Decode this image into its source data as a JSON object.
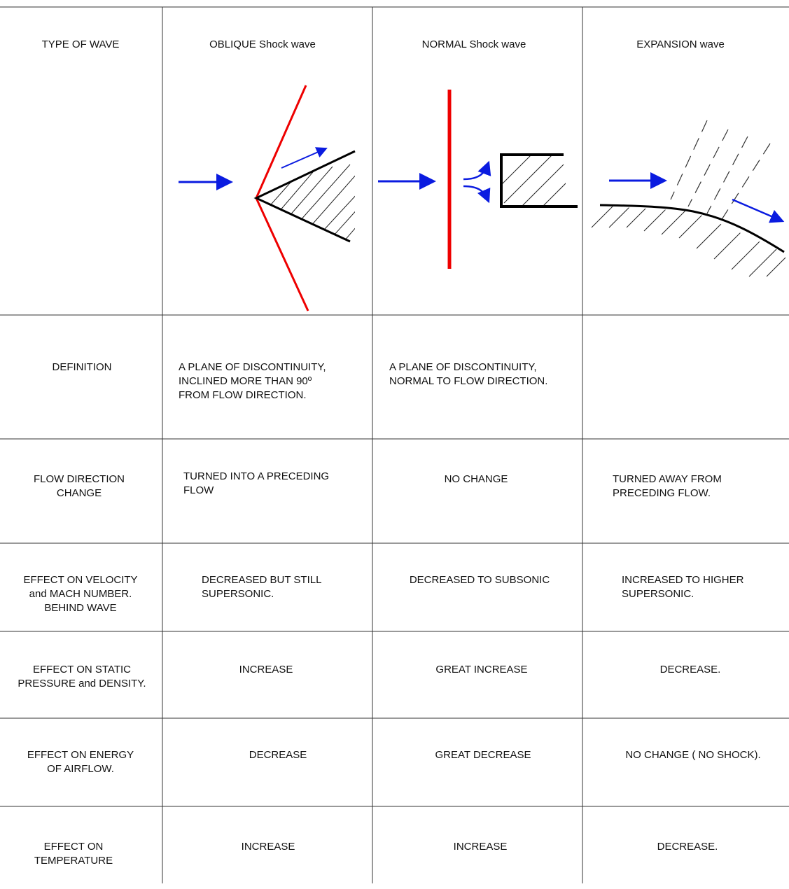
{
  "table": {
    "header": [
      "TYPE OF WAVE",
      "OBLIQUE  Shock wave",
      "NORMAL  Shock wave",
      "EXPANSION wave"
    ],
    "rows": [
      {
        "label": [
          "DEFINITION"
        ],
        "cells": [
          [
            "A PLANE OF DISCONTINUITY,",
            "INCLINED MORE THAN 90º",
            "FROM FLOW DIRECTION."
          ],
          [
            "A PLANE OF DISCONTINUITY,",
            "NORMAL TO FLOW DIRECTION."
          ],
          null
        ]
      },
      {
        "label": [
          "FLOW DIRECTION",
          "CHANGE"
        ],
        "cells": [
          [
            "TURNED INTO A PRECEDING",
            "FLOW"
          ],
          [
            "NO  CHANGE"
          ],
          [
            "TURNED AWAY FROM",
            "PRECEDING  FLOW."
          ]
        ]
      },
      {
        "label": [
          "EFFECT ON VELOCITY",
          "and  MACH NUMBER.",
          "BEHIND WAVE"
        ],
        "cells": [
          [
            "DECREASED BUT STILL",
            "SUPERSONIC."
          ],
          [
            "DECREASED TO SUBSONIC"
          ],
          [
            "INCREASED TO HIGHER",
            "SUPERSONIC."
          ]
        ]
      },
      {
        "label": [
          "EFFECT ON STATIC",
          "PRESSURE and DENSITY."
        ],
        "cells": [
          [
            "INCREASE"
          ],
          [
            "GREAT  INCREASE"
          ],
          [
            "DECREASE."
          ]
        ]
      },
      {
        "label": [
          "EFFECT  ON ENERGY",
          "OF AIRFLOW."
        ],
        "cells": [
          [
            "DECREASE"
          ],
          [
            "GREAT  DECREASE"
          ],
          [
            "NO  CHANGE ( NO SHOCK)."
          ]
        ]
      },
      {
        "label": [
          "EFFECT ON",
          "TEMPERATURE"
        ],
        "cells": [
          [
            "INCREASE"
          ],
          [
            "INCREASE"
          ],
          [
            "DECREASE."
          ]
        ]
      }
    ]
  }
}
